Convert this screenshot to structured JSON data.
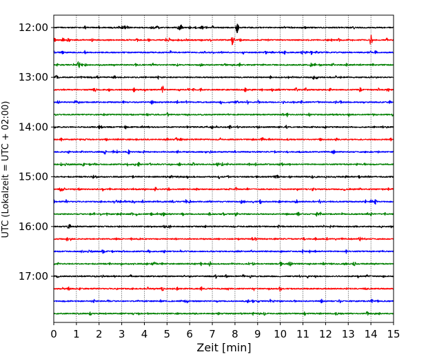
{
  "chart_data": {
    "type": "line",
    "xlabel": "Zeit  [min]",
    "ylabel": "UTC (Lokalzeit = UTC + 02:00)",
    "xlim": [
      0,
      15
    ],
    "x_ticks": [
      "0",
      "1",
      "2",
      "3",
      "4",
      "5",
      "6",
      "7",
      "8",
      "9",
      "10",
      "11",
      "12",
      "13",
      "14",
      "15"
    ],
    "y_tick_labels": [
      "12:00",
      "13:00",
      "14:00",
      "15:00",
      "16:00",
      "17:00"
    ],
    "vertical_grid": true,
    "trace_interval_minutes": 15,
    "trace_colors": [
      "#000000",
      "#ff0000",
      "#0000ff",
      "#008000"
    ],
    "traces_start": [
      "12:00",
      "12:15",
      "12:30",
      "12:45",
      "13:00",
      "13:15",
      "13:30",
      "13:45",
      "14:00",
      "14:15",
      "14:30",
      "14:45",
      "15:00",
      "15:15",
      "15:30",
      "15:45",
      "16:00",
      "16:15",
      "16:30",
      "16:45",
      "17:00",
      "17:15",
      "17:30",
      "17:45"
    ],
    "notable_events": [
      {
        "trace": 0,
        "minute": 8.1,
        "amplitude": 9
      },
      {
        "trace": 0,
        "minute": 5.6,
        "amplitude": 6
      },
      {
        "trace": 1,
        "minute": 7.9,
        "amplitude": 9
      },
      {
        "trace": 1,
        "minute": 14.0,
        "amplitude": 8
      },
      {
        "trace": 1,
        "minute": 0.4,
        "amplitude": 5
      },
      {
        "trace": 3,
        "minute": 1.1,
        "amplitude": 6
      },
      {
        "trace": 5,
        "minute": 4.8,
        "amplitude": 6
      },
      {
        "trace": 19,
        "minute": 6.9,
        "amplitude": 4
      },
      {
        "trace": 21,
        "minute": 10.0,
        "amplitude": 5
      },
      {
        "trace": 21,
        "minute": 4.8,
        "amplitude": 4
      },
      {
        "trace": 14,
        "minute": 14.2,
        "amplitude": 4
      }
    ]
  }
}
